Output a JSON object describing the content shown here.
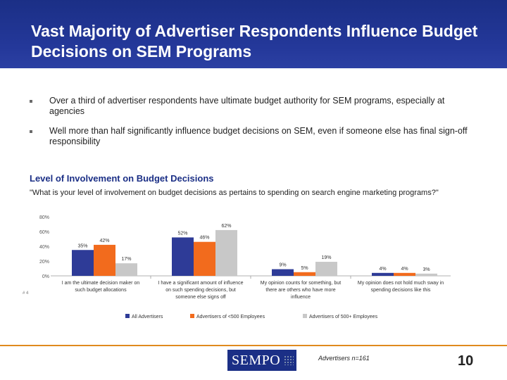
{
  "title": "Vast Majority of Advertiser Respondents Influence Budget Decisions on SEM Programs",
  "bullets": [
    "Over a third of advertiser respondents have ultimate budget authority for SEM programs, especially at agencies",
    "Well more than half significantly influence budget decisions on SEM, even if someone else has final sign-off responsibility"
  ],
  "subheading": "Level of Involvement on Budget Decisions",
  "question": "\"What is your level of involvement on budget decisions as pertains to spending on search engine marketing programs?\"",
  "source": "Advertisers n=161",
  "page_number": "10",
  "logo_text": "SEMPO",
  "colors": {
    "header": "#1b2f86",
    "series": [
      "#2e3b97",
      "#f26b1d",
      "#c8c8c8"
    ],
    "footer_line": "#e08a1e"
  },
  "chart_data": {
    "type": "bar",
    "categories": [
      [
        "I am the ultimate decision maker on",
        "such budget allocations"
      ],
      [
        "I have a significant amount of influence",
        "on such spending decisions, but",
        "someone else signs off"
      ],
      [
        "My opinion counts for something, but",
        "there are others who have more",
        "influence"
      ],
      [
        "My opinion does not hold much sway in",
        "spending decisions like this"
      ]
    ],
    "series": [
      {
        "name": "All Advertisers",
        "values": [
          35,
          52,
          9,
          4
        ],
        "labels": [
          "35%",
          "52%",
          "9%",
          "4%"
        ]
      },
      {
        "name": "Advertisers of <500 Employees",
        "values": [
          42,
          46,
          5,
          4
        ],
        "labels": [
          "42%",
          "46%",
          "5%",
          "4%"
        ]
      },
      {
        "name": "Advertisers of 500+ Employees",
        "values": [
          17,
          62,
          19,
          3
        ],
        "labels": [
          "17%",
          "62%",
          "19%",
          "3%"
        ]
      }
    ],
    "yticks": [
      "0%",
      "20%",
      "40%",
      "60%",
      "80%"
    ],
    "ylim": [
      0,
      80
    ],
    "legend_position": "bottom",
    "grid": false,
    "note": "# 4"
  }
}
